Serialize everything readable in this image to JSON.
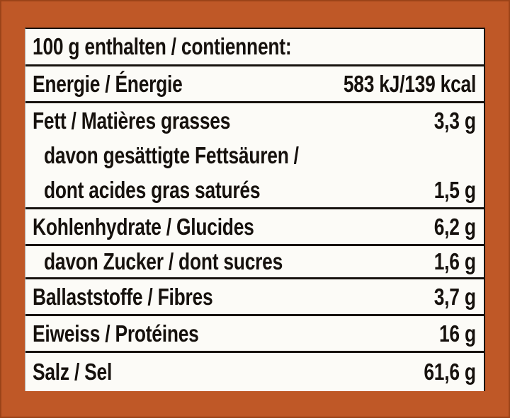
{
  "colors": {
    "frame": "#bf5827",
    "frame_edge": "#9c4318",
    "paper": "#fcfbf7",
    "rule": "#17120e",
    "text": "#16110d"
  },
  "nutrition_label": {
    "header": "100 g enthalten / contiennent:",
    "rows": [
      {
        "id": "energie",
        "lines": [
          {
            "label": "Energie / Énergie",
            "value": "583 kJ/139 kcal",
            "indent": false
          }
        ]
      },
      {
        "id": "fett",
        "lines": [
          {
            "label": "Fett / Matières grasses",
            "value": "3,3 g",
            "indent": false
          },
          {
            "label": "davon gesättigte Fettsäuren /",
            "value": "",
            "indent": true
          },
          {
            "label": "dont acides gras saturés",
            "value": "1,5 g",
            "indent": true
          }
        ]
      },
      {
        "id": "kohlenhydrate",
        "lines": [
          {
            "label": "Kohlenhydrate / Glucides",
            "value": "6,2 g",
            "indent": false
          }
        ]
      },
      {
        "id": "zucker",
        "lines": [
          {
            "label": "davon Zucker / dont sucres",
            "value": "1,6 g",
            "indent": true
          }
        ]
      },
      {
        "id": "ballaststoffe",
        "lines": [
          {
            "label": "Ballaststoffe / Fibres",
            "value": "3,7 g",
            "indent": false
          }
        ]
      },
      {
        "id": "eiweiss",
        "lines": [
          {
            "label": "Eiweiss / Protéines",
            "value": "16 g",
            "indent": false
          }
        ]
      },
      {
        "id": "salz",
        "lines": [
          {
            "label": "Salz / Sel",
            "value": "61,6 g",
            "indent": false
          }
        ]
      }
    ]
  }
}
